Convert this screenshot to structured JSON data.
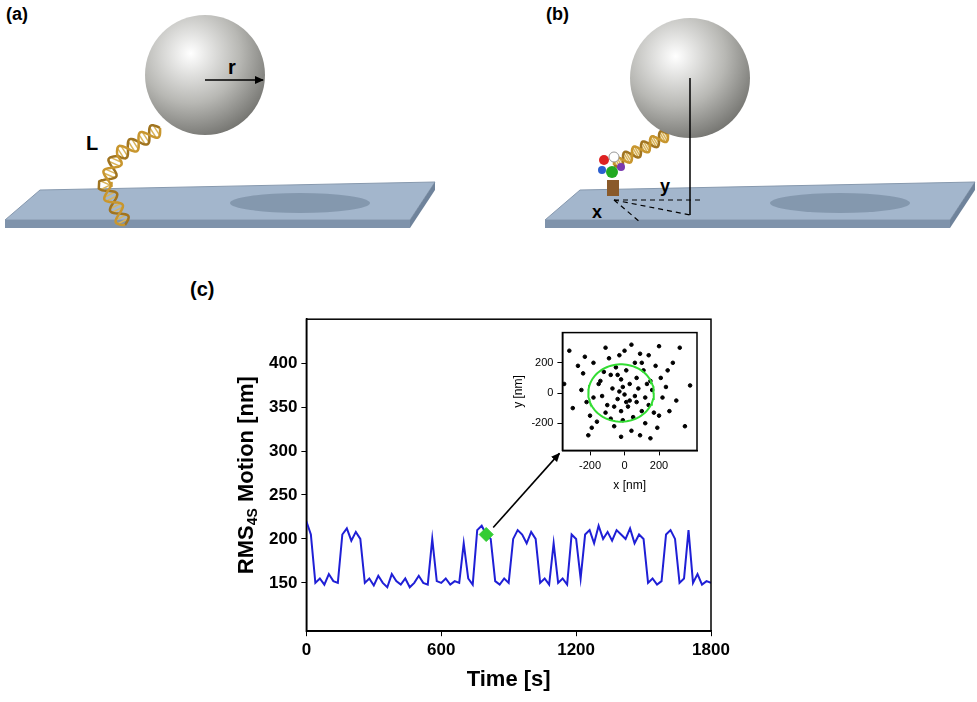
{
  "panels": [
    {
      "label": "(a)",
      "annotations": [
        "r",
        "L"
      ]
    },
    {
      "label": "(b)",
      "annotations": [
        "x",
        "y"
      ]
    }
  ],
  "chart_data": [
    {
      "type": "line",
      "panel_label": "(c)",
      "xlabel": "Time [s]",
      "ylabel": "RMS4S Motion [nm]",
      "ylabel_subscript": "4S",
      "x": [
        0,
        20,
        40,
        60,
        80,
        100,
        120,
        140,
        160,
        180,
        200,
        220,
        240,
        260,
        280,
        300,
        320,
        340,
        360,
        380,
        400,
        420,
        440,
        460,
        480,
        500,
        520,
        540,
        560,
        580,
        600,
        620,
        640,
        660,
        680,
        700,
        720,
        740,
        760,
        780,
        800,
        820,
        840,
        860,
        880,
        900,
        920,
        940,
        960,
        980,
        1000,
        1020,
        1040,
        1060,
        1080,
        1100,
        1120,
        1140,
        1160,
        1180,
        1200,
        1220,
        1240,
        1260,
        1280,
        1300,
        1320,
        1340,
        1360,
        1380,
        1400,
        1420,
        1440,
        1460,
        1480,
        1500,
        1520,
        1540,
        1560,
        1580,
        1600,
        1620,
        1640,
        1660,
        1680,
        1700,
        1720,
        1740,
        1760,
        1780,
        1800
      ],
      "series": [
        {
          "color": "#1f1fd6",
          "values": [
            220,
            205,
            150,
            155,
            148,
            160,
            152,
            150,
            205,
            212,
            198,
            208,
            200,
            150,
            155,
            147,
            158,
            150,
            145,
            160,
            152,
            148,
            155,
            145,
            150,
            158,
            150,
            148,
            200,
            152,
            150,
            155,
            148,
            152,
            150,
            195,
            155,
            148,
            210,
            215,
            205,
            200,
            152,
            148,
            155,
            150,
            200,
            210,
            205,
            195,
            208,
            200,
            150,
            155,
            148,
            195,
            150,
            155,
            148,
            205,
            200,
            155,
            205,
            210,
            195,
            215,
            200,
            208,
            198,
            210,
            205,
            200,
            212,
            195,
            205,
            200,
            150,
            155,
            148,
            152,
            205,
            210,
            200,
            150,
            155,
            210,
            150,
            160,
            148,
            152,
            150
          ]
        }
      ],
      "highlight": {
        "x": 800,
        "y": 205,
        "color": "#33cc33",
        "marker": "diamond"
      },
      "xlim": [
        0,
        1800
      ],
      "xticks": [
        0,
        600,
        1200,
        1800
      ],
      "ylim": [
        95,
        450
      ],
      "yticks": [
        150,
        200,
        250,
        300,
        350,
        400
      ],
      "grid": false
    },
    {
      "type": "scatter",
      "xlabel": "x [nm]",
      "ylabel": "y [nm]",
      "color": "#000000",
      "marker": "circle",
      "x": [
        -80,
        30,
        150,
        -200,
        60,
        -30,
        100,
        -150,
        220,
        -60,
        10,
        180,
        -250,
        80,
        -100,
        250,
        -20,
        120,
        -180,
        40,
        -300,
        0,
        200,
        -120,
        70,
        -40,
        160,
        -220,
        30,
        -90,
        140,
        -10,
        300,
        -160,
        90,
        -70,
        20,
        -130,
        110,
        -240,
        50,
        -20,
        190,
        -50,
        130,
        -110,
        240,
        -190,
        60,
        -30,
        280,
        -270,
        10,
        170,
        -80,
        100,
        -140,
        -10,
        210,
        -60,
        320,
        -320,
        40,
        -210,
        350,
        150,
        -110,
        70,
        -40,
        260,
        -180,
        0,
        120,
        -230,
        90,
        -350,
        380,
        200,
        -20,
        140
      ],
      "values": [
        120,
        -50,
        80,
        -150,
        200,
        10,
        -120,
        60,
        -30,
        -220,
        150,
        180,
        20,
        30,
        -80,
        150,
        -120,
        -200,
        200,
        -250,
        -100,
        280,
        -150,
        140,
        100,
        -40,
        20,
        -60,
        60,
        230,
        -80,
        -180,
        -50,
        -190,
        260,
        30,
        -90,
        -20,
        150,
        130,
        -160,
        90,
        -230,
        170,
        60,
        -130,
        40,
        -230,
        -20,
        250,
        200,
        180,
        -60,
        -130,
        -170,
        200,
        80,
        40,
        100,
        -90,
        300,
        280,
        320,
        -280,
        -220,
        -300,
        300,
        -60,
        120,
        -120,
        -30,
        -10,
        -30,
        240,
        -280,
        60,
        50,
        310,
        -290,
        250
      ],
      "circle": {
        "center": [
          -20,
          0
        ],
        "radius": 190,
        "color": "#33dd33"
      },
      "xlim": [
        -360,
        420
      ],
      "xticks": [
        -200,
        0,
        200
      ],
      "ylim": [
        -380,
        400
      ],
      "yticks": [
        -200,
        0,
        200
      ],
      "grid": false
    }
  ]
}
